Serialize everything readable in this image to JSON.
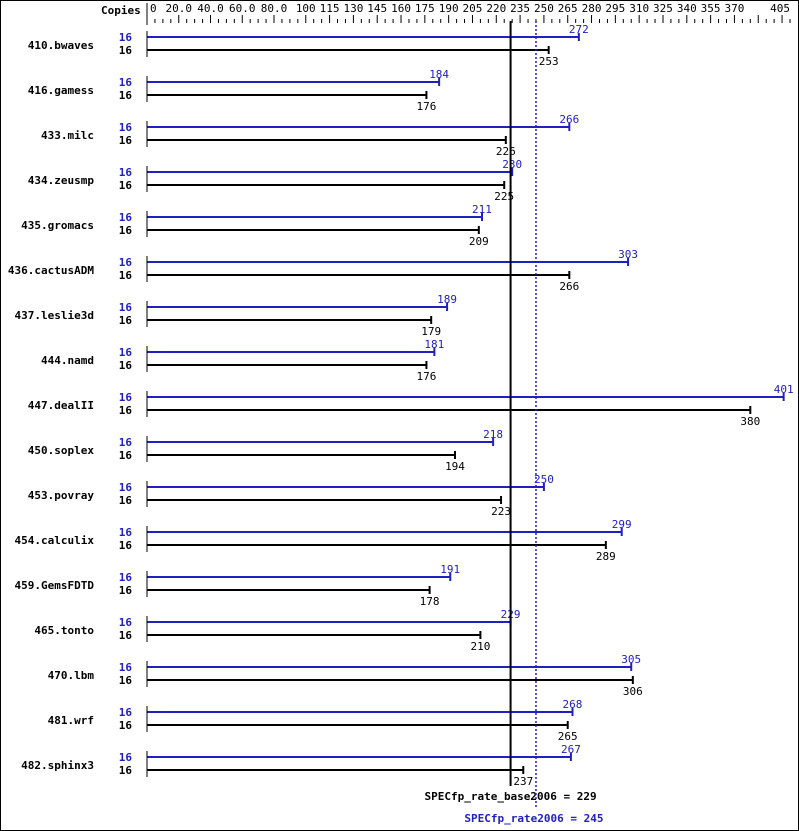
{
  "chart_data": {
    "type": "bar",
    "orientation": "horizontal",
    "copies_label": "Copies",
    "x_ticks": [
      "0",
      "20.0",
      "40.0",
      "60.0",
      "80.0",
      "100",
      "115",
      "130",
      "145",
      "160",
      "175",
      "190",
      "205",
      "220",
      "235",
      "250",
      "265",
      "280",
      "295",
      "310",
      "325",
      "340",
      "355",
      "370",
      "405"
    ],
    "xlim": [
      0,
      405
    ],
    "categories": [
      "410.bwaves",
      "416.gamess",
      "433.milc",
      "434.zeusmp",
      "435.gromacs",
      "436.cactusADM",
      "437.leslie3d",
      "444.namd",
      "447.dealII",
      "450.soplex",
      "453.povray",
      "454.calculix",
      "459.GemsFDTD",
      "465.tonto",
      "470.lbm",
      "481.wrf",
      "482.sphinx3"
    ],
    "series": [
      {
        "key": "peak",
        "color": "#2020c0",
        "copies": [
          16,
          16,
          16,
          16,
          16,
          16,
          16,
          16,
          16,
          16,
          16,
          16,
          16,
          16,
          16,
          16,
          16
        ],
        "values": [
          272,
          184,
          266,
          230,
          211,
          303,
          189,
          181,
          401,
          218,
          250,
          299,
          191,
          229,
          305,
          268,
          267
        ]
      },
      {
        "key": "base",
        "color": "#000000",
        "copies": [
          16,
          16,
          16,
          16,
          16,
          16,
          16,
          16,
          16,
          16,
          16,
          16,
          16,
          16,
          16,
          16,
          16
        ],
        "values": [
          253,
          176,
          226,
          225,
          209,
          266,
          179,
          176,
          380,
          194,
          223,
          289,
          178,
          210,
          306,
          265,
          237
        ]
      }
    ],
    "reference_lines": [
      {
        "label": "SPECfp_rate_base2006 = 229",
        "value": 229,
        "color": "#000000",
        "style": "solid"
      },
      {
        "label": "SPECfp_rate2006 = 245",
        "value": 245,
        "color": "#2020c0",
        "style": "dotted"
      }
    ]
  }
}
